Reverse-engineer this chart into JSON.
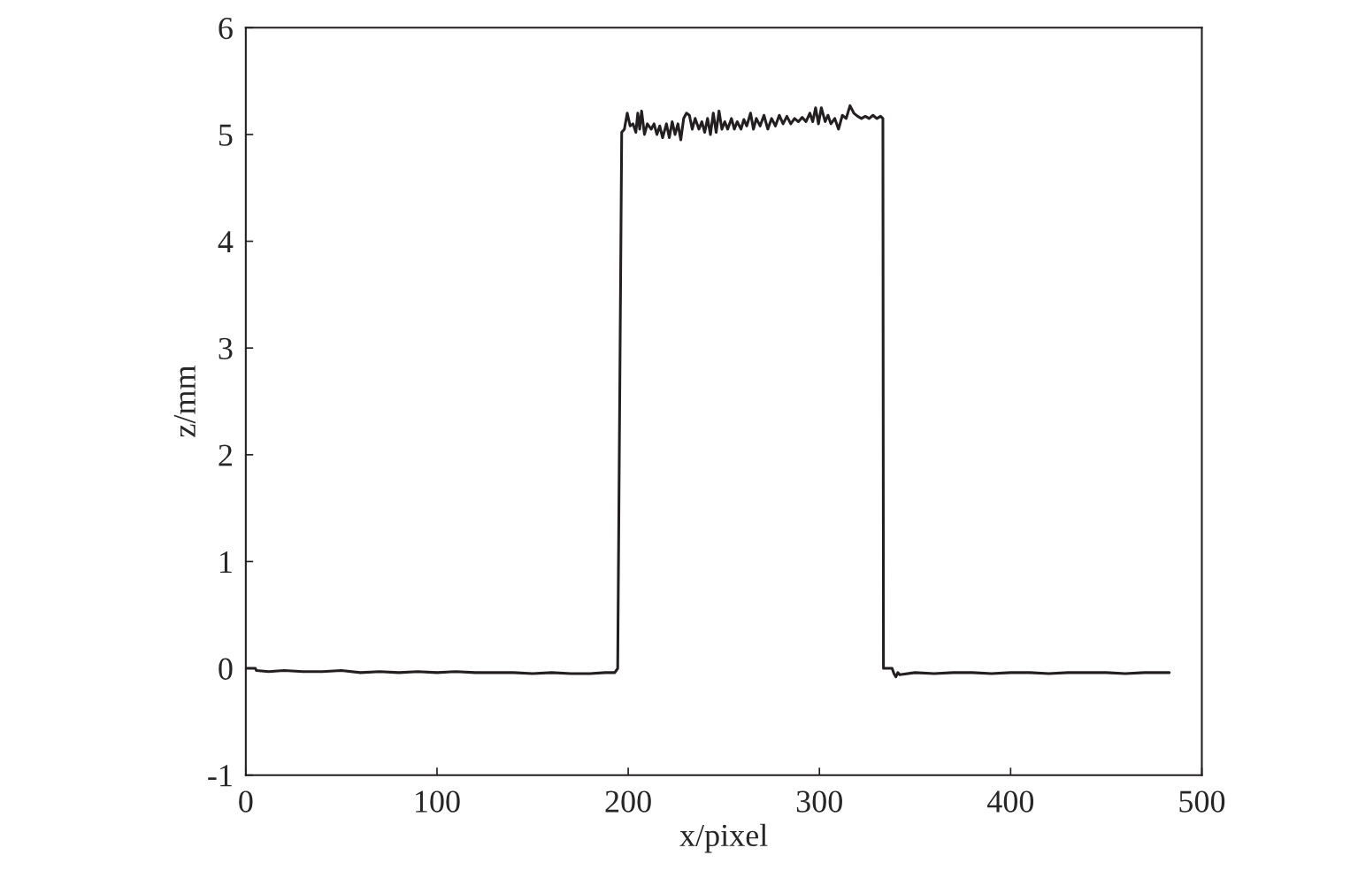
{
  "chart_data": {
    "type": "line",
    "xlabel": "x/pixel",
    "ylabel": "z/mm",
    "xlim": [
      0,
      500
    ],
    "ylim": [
      -1,
      6
    ],
    "xticks": [
      0,
      100,
      200,
      300,
      400,
      500
    ],
    "yticks": [
      -1,
      0,
      1,
      2,
      3,
      4,
      5,
      6
    ],
    "grid": false,
    "line_style": "solid",
    "series": [
      {
        "color": "#231f20",
        "x": [
          0,
          5,
          5.5,
          12,
          20,
          30,
          40,
          50,
          60,
          70,
          80,
          90,
          100,
          110,
          120,
          130,
          140,
          150,
          160,
          170,
          180,
          188,
          193,
          194.5,
          196.6,
          198,
          199.5,
          201,
          202.5,
          204,
          205,
          206,
          207,
          208.5,
          210,
          212,
          213.5,
          215,
          216.5,
          218,
          220,
          221.5,
          223,
          224.5,
          226,
          227.5,
          229,
          230.5,
          232,
          233.5,
          235,
          237,
          238.5,
          240,
          241.5,
          243,
          244.5,
          246,
          247.5,
          249,
          250.5,
          252,
          254,
          255.5,
          257,
          259,
          260.5,
          262,
          264,
          265.5,
          267,
          269,
          271,
          273,
          275,
          277,
          279,
          281,
          283,
          285,
          287,
          289,
          291,
          293,
          295,
          296.5,
          298,
          299.5,
          301,
          303,
          304.5,
          306,
          308,
          310,
          312,
          314,
          316,
          318,
          320,
          322,
          324,
          326,
          328,
          330,
          332,
          333.2,
          333.5,
          338,
          339,
          340,
          341,
          342,
          350,
          360,
          370,
          380,
          390,
          400,
          410,
          420,
          430,
          440,
          450,
          460,
          470,
          483
        ],
        "values": [
          0,
          0,
          -0.02,
          -0.03,
          -0.02,
          -0.03,
          -0.03,
          -0.02,
          -0.04,
          -0.03,
          -0.04,
          -0.03,
          -0.04,
          -0.03,
          -0.04,
          -0.04,
          -0.04,
          -0.05,
          -0.04,
          -0.05,
          -0.05,
          -0.04,
          -0.04,
          0,
          5.02,
          5.05,
          5.2,
          5.08,
          5.1,
          5.02,
          5.2,
          5.05,
          5.22,
          5.0,
          5.1,
          5.05,
          5.1,
          5.0,
          5.08,
          4.97,
          5.1,
          4.97,
          5.12,
          5.0,
          5.1,
          4.95,
          5.15,
          5.2,
          5.18,
          5.05,
          5.15,
          5.05,
          5.12,
          5.02,
          5.15,
          5.0,
          5.2,
          5.02,
          5.22,
          5.05,
          5.12,
          5.05,
          5.15,
          5.05,
          5.12,
          5.05,
          5.14,
          5.08,
          5.2,
          5.05,
          5.15,
          5.08,
          5.18,
          5.05,
          5.15,
          5.08,
          5.18,
          5.1,
          5.17,
          5.1,
          5.15,
          5.12,
          5.16,
          5.12,
          5.2,
          5.12,
          5.25,
          5.1,
          5.25,
          5.12,
          5.18,
          5.1,
          5.15,
          5.05,
          5.18,
          5.15,
          5.27,
          5.2,
          5.17,
          5.15,
          5.17,
          5.15,
          5.18,
          5.15,
          5.17,
          5.15,
          0,
          0,
          -0.05,
          -0.08,
          -0.04,
          -0.06,
          -0.04,
          -0.05,
          -0.04,
          -0.04,
          -0.05,
          -0.04,
          -0.04,
          -0.05,
          -0.04,
          -0.04,
          -0.04,
          -0.05,
          -0.04,
          -0.04
        ]
      }
    ]
  }
}
